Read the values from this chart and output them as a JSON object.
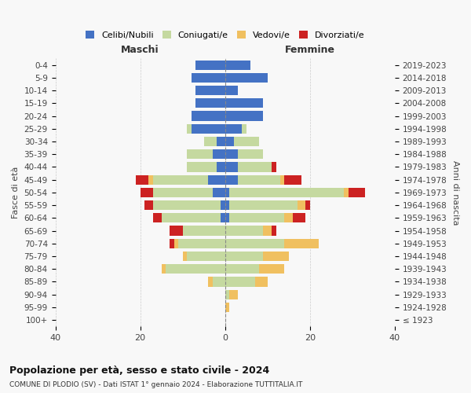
{
  "age_groups": [
    "100+",
    "95-99",
    "90-94",
    "85-89",
    "80-84",
    "75-79",
    "70-74",
    "65-69",
    "60-64",
    "55-59",
    "50-54",
    "45-49",
    "40-44",
    "35-39",
    "30-34",
    "25-29",
    "20-24",
    "15-19",
    "10-14",
    "5-9",
    "0-4"
  ],
  "birth_years": [
    "≤ 1923",
    "1924-1928",
    "1929-1933",
    "1934-1938",
    "1939-1943",
    "1944-1948",
    "1949-1953",
    "1954-1958",
    "1959-1963",
    "1964-1968",
    "1969-1973",
    "1974-1978",
    "1979-1983",
    "1984-1988",
    "1989-1993",
    "1994-1998",
    "1999-2003",
    "2004-2008",
    "2009-2013",
    "2014-2018",
    "2019-2023"
  ],
  "colors": {
    "celibi": "#4472c4",
    "coniugati": "#c5d9a0",
    "vedovi": "#f0c060",
    "divorziati": "#cc2222"
  },
  "maschi": {
    "celibi": [
      0,
      0,
      0,
      0,
      0,
      0,
      0,
      0,
      1,
      1,
      3,
      4,
      2,
      3,
      2,
      8,
      8,
      7,
      7,
      8,
      7
    ],
    "coniugati": [
      0,
      0,
      0,
      3,
      14,
      9,
      11,
      10,
      14,
      16,
      14,
      13,
      7,
      6,
      3,
      1,
      0,
      0,
      0,
      0,
      0
    ],
    "vedovi": [
      0,
      0,
      0,
      1,
      1,
      1,
      1,
      0,
      0,
      0,
      0,
      1,
      0,
      0,
      0,
      0,
      0,
      0,
      0,
      0,
      0
    ],
    "divorziati": [
      0,
      0,
      0,
      0,
      0,
      0,
      1,
      3,
      2,
      2,
      3,
      3,
      0,
      0,
      0,
      0,
      0,
      0,
      0,
      0,
      0
    ]
  },
  "femmine": {
    "celibi": [
      0,
      0,
      0,
      0,
      0,
      0,
      0,
      0,
      1,
      1,
      1,
      3,
      3,
      3,
      2,
      4,
      9,
      9,
      3,
      10,
      6
    ],
    "coniugati": [
      0,
      0,
      1,
      7,
      8,
      9,
      14,
      9,
      13,
      16,
      27,
      10,
      8,
      6,
      6,
      1,
      0,
      0,
      0,
      0,
      0
    ],
    "vedovi": [
      0,
      1,
      2,
      3,
      6,
      6,
      8,
      2,
      2,
      2,
      1,
      1,
      0,
      0,
      0,
      0,
      0,
      0,
      0,
      0,
      0
    ],
    "divorziati": [
      0,
      0,
      0,
      0,
      0,
      0,
      0,
      1,
      3,
      1,
      4,
      4,
      1,
      0,
      0,
      0,
      0,
      0,
      0,
      0,
      0
    ]
  },
  "title": "Popolazione per età, sesso e stato civile - 2024",
  "subtitle": "COMUNE DI PLODIO (SV) - Dati ISTAT 1° gennaio 2024 - Elaborazione TUTTITALIA.IT",
  "xlabel_left": "Maschi",
  "xlabel_right": "Femmine",
  "ylabel_left": "Fasce di età",
  "ylabel_right": "Anni di nascita",
  "xlim": 40,
  "legend_labels": [
    "Celibi/Nubili",
    "Coniugati/e",
    "Vedovi/e",
    "Divorziati/e"
  ],
  "background_color": "#f8f8f8"
}
